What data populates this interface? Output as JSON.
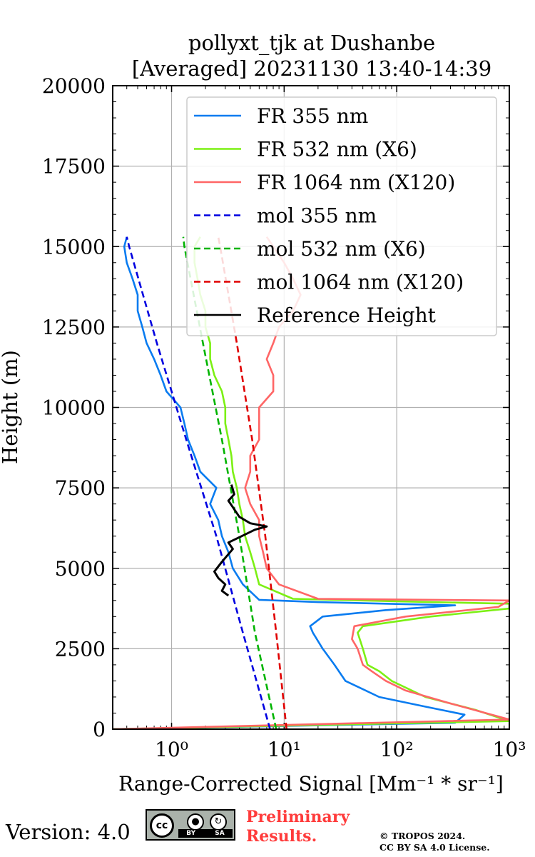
{
  "chart_data": {
    "type": "line",
    "title": "pollyxt_tjk at Dushanbe",
    "subtitle": "[Averaged] 20231130 13:40-14:39",
    "xlabel": "Range-Corrected Signal [Mm⁻¹ * sr⁻¹]",
    "ylabel": "Height (m)",
    "xscale": "log",
    "xlim": [
      0.3,
      1000
    ],
    "ylim": [
      0,
      20000
    ],
    "grid": true,
    "legend_placement": "top-right",
    "x_ticks": [
      1,
      10,
      100,
      1000
    ],
    "x_tick_labels": [
      "10⁰",
      "10¹",
      "10²",
      "10³"
    ],
    "y_ticks": [
      0,
      2500,
      5000,
      7500,
      10000,
      12500,
      15000,
      17500,
      20000
    ],
    "y_tick_labels": [
      "0",
      "2500",
      "5000",
      "7500",
      "10000",
      "12500",
      "15000",
      "17500",
      "20000"
    ],
    "series": [
      {
        "name": "FR 355 nm",
        "color": "#0a7cf0",
        "style": "solid",
        "points": [
          [
            0.3,
            0
          ],
          [
            330,
            200
          ],
          [
            400,
            450
          ],
          [
            180,
            700
          ],
          [
            70,
            1000
          ],
          [
            35,
            1500
          ],
          [
            28,
            2000
          ],
          [
            22,
            2500
          ],
          [
            18,
            3000
          ],
          [
            17,
            3200
          ],
          [
            22,
            3500
          ],
          [
            80,
            3700
          ],
          [
            330,
            3850
          ],
          [
            20,
            3950
          ],
          [
            6,
            4020
          ],
          [
            4.3,
            4500
          ],
          [
            3.5,
            5000
          ],
          [
            3.2,
            5500
          ],
          [
            2.8,
            6000
          ],
          [
            2.6,
            6500
          ],
          [
            2.2,
            7000
          ],
          [
            2.5,
            7500
          ],
          [
            1.8,
            8000
          ],
          [
            1.6,
            8500
          ],
          [
            1.4,
            9000
          ],
          [
            1.3,
            9500
          ],
          [
            1.2,
            10000
          ],
          [
            0.9,
            10500
          ],
          [
            0.8,
            11000
          ],
          [
            0.7,
            11500
          ],
          [
            0.6,
            12000
          ],
          [
            0.55,
            12500
          ],
          [
            0.5,
            13000
          ],
          [
            0.5,
            13500
          ],
          [
            0.45,
            14000
          ],
          [
            0.4,
            14500
          ],
          [
            0.38,
            15000
          ],
          [
            0.4,
            15300
          ]
        ]
      },
      {
        "name": "FR 532 nm (X6)",
        "color": "#7cf014",
        "style": "solid",
        "points": [
          [
            0.3,
            0
          ],
          [
            1000,
            250
          ],
          [
            500,
            600
          ],
          [
            180,
            1000
          ],
          [
            90,
            1500
          ],
          [
            70,
            1800
          ],
          [
            55,
            2000
          ],
          [
            50,
            2500
          ],
          [
            45,
            3000
          ],
          [
            50,
            3200
          ],
          [
            200,
            3500
          ],
          [
            1000,
            3750
          ],
          [
            1000,
            3900
          ],
          [
            200,
            3950
          ],
          [
            12,
            4050
          ],
          [
            6,
            4500
          ],
          [
            5.5,
            5000
          ],
          [
            5,
            5500
          ],
          [
            4.5,
            6000
          ],
          [
            4.3,
            6500
          ],
          [
            4,
            7000
          ],
          [
            3.8,
            7500
          ],
          [
            3.5,
            8000
          ],
          [
            3.4,
            8500
          ],
          [
            3.2,
            9000
          ],
          [
            3,
            9500
          ],
          [
            3,
            10000
          ],
          [
            2.8,
            10500
          ],
          [
            2.4,
            11000
          ],
          [
            2.2,
            11500
          ],
          [
            2.2,
            12000
          ],
          [
            2,
            12500
          ],
          [
            2,
            13000
          ],
          [
            1.8,
            13500
          ],
          [
            1.7,
            14000
          ],
          [
            1.6,
            14500
          ],
          [
            1.6,
            15000
          ],
          [
            1.8,
            15300
          ]
        ]
      },
      {
        "name": "FR 1064 nm (X120)",
        "color": "#ff6666",
        "style": "solid",
        "points": [
          [
            0.3,
            0
          ],
          [
            1000,
            300
          ],
          [
            300,
            800
          ],
          [
            120,
            1200
          ],
          [
            80,
            1500
          ],
          [
            60,
            1800
          ],
          [
            50,
            2000
          ],
          [
            45,
            2500
          ],
          [
            40,
            2800
          ],
          [
            42,
            3200
          ],
          [
            120,
            3500
          ],
          [
            800,
            3800
          ],
          [
            1000,
            4000
          ],
          [
            20,
            4050
          ],
          [
            9,
            4500
          ],
          [
            7,
            5000
          ],
          [
            6.5,
            5500
          ],
          [
            6,
            6000
          ],
          [
            6,
            6500
          ],
          [
            5,
            7000
          ],
          [
            4.5,
            7500
          ],
          [
            5,
            8000
          ],
          [
            5,
            8500
          ],
          [
            6,
            9000
          ],
          [
            6,
            9500
          ],
          [
            6,
            10000
          ],
          [
            8,
            10500
          ],
          [
            8,
            11000
          ],
          [
            7,
            11500
          ],
          [
            8,
            12000
          ],
          [
            9,
            12500
          ],
          [
            12,
            13000
          ],
          [
            14,
            13500
          ],
          [
            12,
            14000
          ],
          [
            10,
            14500
          ],
          [
            8,
            15000
          ],
          [
            7,
            15300
          ]
        ]
      },
      {
        "name": "mol 355 nm",
        "color": "#0000e0",
        "style": "dashed",
        "points": [
          [
            7.5,
            0
          ],
          [
            4.3,
            3000
          ],
          [
            2.5,
            6000
          ],
          [
            1.35,
            9000
          ],
          [
            0.74,
            12000
          ],
          [
            0.42,
            15000
          ],
          [
            0.4,
            15300
          ]
        ]
      },
      {
        "name": "mol 532 nm (X6)",
        "color": "#00b400",
        "style": "dashed",
        "points": [
          [
            8.5,
            0
          ],
          [
            5.5,
            3000
          ],
          [
            4.0,
            6000
          ],
          [
            2.8,
            9000
          ],
          [
            1.9,
            12000
          ],
          [
            1.3,
            15000
          ],
          [
            1.27,
            15300
          ]
        ]
      },
      {
        "name": "mol 1064 nm (X120)",
        "color": "#e00000",
        "style": "dashed",
        "points": [
          [
            10.5,
            0
          ],
          [
            8.5,
            3000
          ],
          [
            6.8,
            6000
          ],
          [
            5.2,
            9000
          ],
          [
            3.8,
            12000
          ],
          [
            2.7,
            15000
          ],
          [
            2.6,
            15300
          ]
        ]
      },
      {
        "name": "Reference Height",
        "color": "#000000",
        "style": "solid",
        "points": [
          [
            3.2,
            4150
          ],
          [
            2.8,
            4300
          ],
          [
            3.0,
            4500
          ],
          [
            2.6,
            4700
          ],
          [
            2.4,
            4900
          ],
          [
            2.8,
            5200
          ],
          [
            3.5,
            5600
          ],
          [
            3.2,
            5800
          ],
          [
            4.2,
            6000
          ],
          [
            5.5,
            6200
          ],
          [
            7.0,
            6300
          ],
          [
            5.0,
            6400
          ],
          [
            4.0,
            6600
          ],
          [
            3.5,
            6900
          ],
          [
            3.2,
            7100
          ],
          [
            3.6,
            7300
          ],
          [
            3.4,
            7600
          ]
        ]
      }
    ]
  },
  "footer": {
    "version": "Version: 4.0",
    "license_badge": {
      "cc": "cc",
      "by": "BY",
      "sa": "SA"
    },
    "preliminary_line1": "Preliminary",
    "preliminary_line2": "Results.",
    "copyright_line1": "© TROPOS 2024.",
    "copyright_line2": "CC BY SA 4.0 License."
  }
}
